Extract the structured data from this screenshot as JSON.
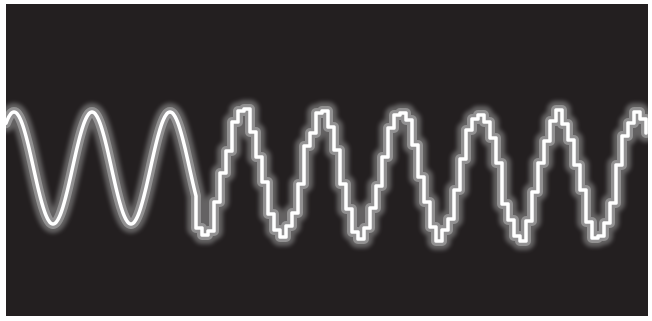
{
  "figure": {
    "type": "oscilloscope-trace",
    "segments": [
      {
        "kind": "smooth sine",
        "cycles_shown": 3
      },
      {
        "kind": "stepped sine",
        "cycles_shown": 6
      }
    ]
  },
  "colors": {
    "screen_background": "#231f20",
    "trace_core": "#ffffff",
    "trace_glow": "#9a9a9a",
    "page_border": "#ffffff"
  }
}
